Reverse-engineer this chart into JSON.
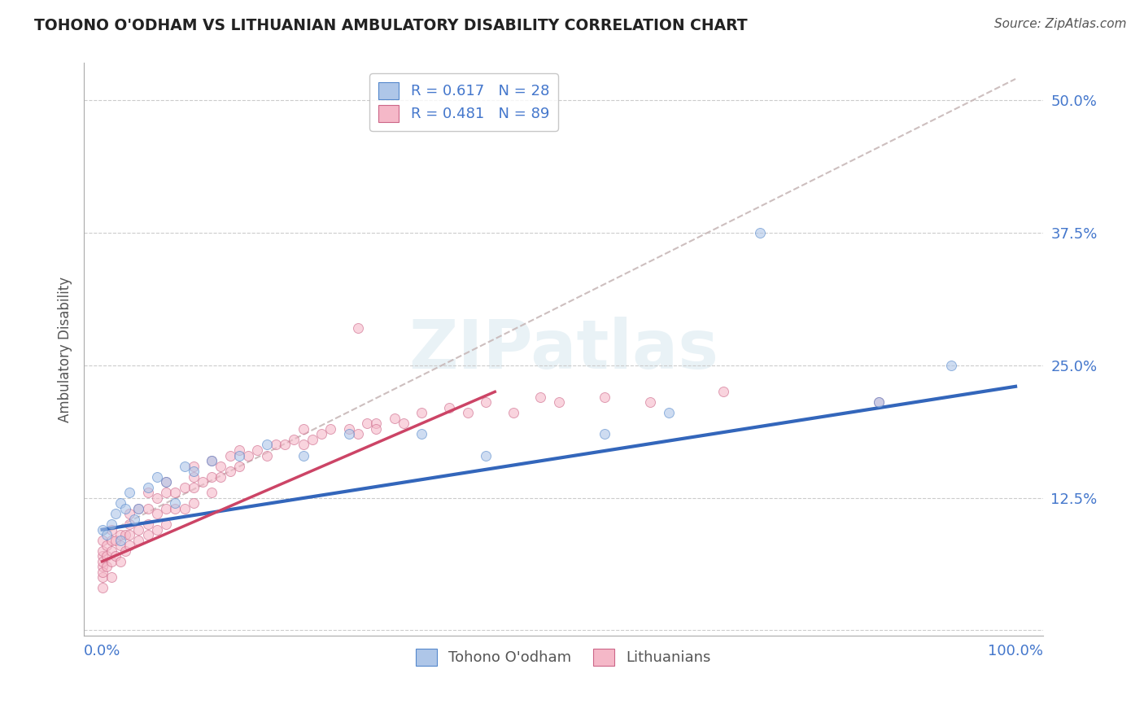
{
  "title": "TOHONO O'ODHAM VS LITHUANIAN AMBULATORY DISABILITY CORRELATION CHART",
  "source_text": "Source: ZipAtlas.com",
  "ylabel_label": "Ambulatory Disability",
  "watermark_text": "ZIPatlas",
  "xlim": [
    -0.02,
    1.03
  ],
  "ylim": [
    -0.005,
    0.535
  ],
  "xtick_positions": [
    0.0,
    1.0
  ],
  "xtick_labels": [
    "0.0%",
    "100.0%"
  ],
  "ytick_positions": [
    0.0,
    0.125,
    0.25,
    0.375,
    0.5
  ],
  "ytick_labels": [
    "",
    "12.5%",
    "25.0%",
    "37.5%",
    "50.0%"
  ],
  "background_color": "#ffffff",
  "grid_color": "#cccccc",
  "blue_fill_color": "#aec6e8",
  "blue_edge_color": "#5588cc",
  "pink_fill_color": "#f5b8c8",
  "pink_edge_color": "#cc6688",
  "blue_line_color": "#3366bb",
  "pink_line_color": "#cc4466",
  "diag_line_color": "#c8b8b8",
  "r_blue": "0.617",
  "n_blue": "28",
  "r_pink": "0.481",
  "n_pink": "89",
  "tohono_x": [
    0.0,
    0.005,
    0.01,
    0.015,
    0.02,
    0.02,
    0.025,
    0.03,
    0.035,
    0.04,
    0.05,
    0.06,
    0.07,
    0.08,
    0.09,
    0.1,
    0.12,
    0.15,
    0.18,
    0.22,
    0.27,
    0.35,
    0.42,
    0.55,
    0.62,
    0.72,
    0.85,
    0.93
  ],
  "tohono_y": [
    0.095,
    0.09,
    0.1,
    0.11,
    0.085,
    0.12,
    0.115,
    0.13,
    0.105,
    0.115,
    0.135,
    0.145,
    0.14,
    0.12,
    0.155,
    0.15,
    0.16,
    0.165,
    0.175,
    0.165,
    0.185,
    0.185,
    0.165,
    0.185,
    0.205,
    0.375,
    0.215,
    0.25
  ],
  "lithuanian_x": [
    0.0,
    0.0,
    0.0,
    0.0,
    0.0,
    0.0,
    0.0,
    0.0,
    0.005,
    0.005,
    0.005,
    0.01,
    0.01,
    0.01,
    0.01,
    0.01,
    0.015,
    0.015,
    0.02,
    0.02,
    0.02,
    0.025,
    0.025,
    0.03,
    0.03,
    0.03,
    0.03,
    0.04,
    0.04,
    0.04,
    0.05,
    0.05,
    0.05,
    0.05,
    0.06,
    0.06,
    0.06,
    0.07,
    0.07,
    0.07,
    0.07,
    0.08,
    0.08,
    0.09,
    0.09,
    0.1,
    0.1,
    0.1,
    0.1,
    0.11,
    0.12,
    0.12,
    0.12,
    0.13,
    0.13,
    0.14,
    0.14,
    0.15,
    0.15,
    0.16,
    0.17,
    0.18,
    0.19,
    0.2,
    0.21,
    0.22,
    0.22,
    0.23,
    0.24,
    0.25,
    0.27,
    0.28,
    0.29,
    0.3,
    0.3,
    0.32,
    0.33,
    0.35,
    0.38,
    0.4,
    0.42,
    0.45,
    0.48,
    0.5,
    0.55,
    0.6,
    0.68,
    0.85,
    0.28
  ],
  "lithuanian_y": [
    0.04,
    0.05,
    0.06,
    0.07,
    0.055,
    0.065,
    0.075,
    0.085,
    0.06,
    0.07,
    0.08,
    0.05,
    0.065,
    0.075,
    0.085,
    0.095,
    0.07,
    0.085,
    0.065,
    0.08,
    0.09,
    0.075,
    0.09,
    0.08,
    0.09,
    0.1,
    0.11,
    0.085,
    0.095,
    0.115,
    0.09,
    0.1,
    0.115,
    0.13,
    0.095,
    0.11,
    0.125,
    0.1,
    0.115,
    0.13,
    0.14,
    0.115,
    0.13,
    0.115,
    0.135,
    0.12,
    0.135,
    0.145,
    0.155,
    0.14,
    0.13,
    0.145,
    0.16,
    0.145,
    0.155,
    0.15,
    0.165,
    0.155,
    0.17,
    0.165,
    0.17,
    0.165,
    0.175,
    0.175,
    0.18,
    0.175,
    0.19,
    0.18,
    0.185,
    0.19,
    0.19,
    0.185,
    0.195,
    0.195,
    0.19,
    0.2,
    0.195,
    0.205,
    0.21,
    0.205,
    0.215,
    0.205,
    0.22,
    0.215,
    0.22,
    0.215,
    0.225,
    0.215,
    0.285
  ],
  "blue_trendline_x": [
    0.0,
    1.0
  ],
  "blue_trendline_y": [
    0.095,
    0.23
  ],
  "pink_trendline_x": [
    0.0,
    0.43
  ],
  "pink_trendline_y": [
    0.065,
    0.225
  ],
  "diag_trendline_x": [
    0.0,
    1.0
  ],
  "diag_trendline_y": [
    0.09,
    0.52
  ],
  "marker_size": 75,
  "marker_alpha": 0.6,
  "legend_blue_text_color": "#3366bb",
  "legend_pink_text_color": "#cc4466",
  "tick_color": "#4477cc",
  "axis_color": "#aaaaaa"
}
